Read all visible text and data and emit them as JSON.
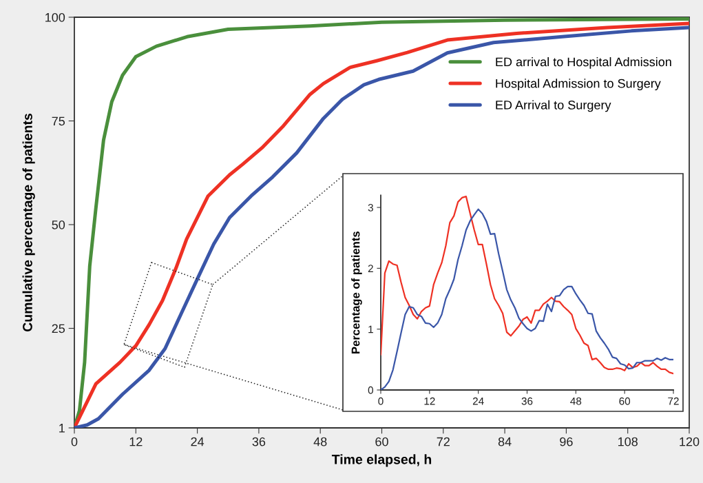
{
  "chart_data": [
    {
      "type": "line",
      "xlabel": "Time elapsed, h",
      "ylabel": "Cumulative percentage of patients",
      "xlim": [
        0,
        120
      ],
      "xticks": [
        0,
        12,
        24,
        36,
        48,
        60,
        72,
        84,
        96,
        108,
        120
      ],
      "ylim": [
        1,
        100
      ],
      "yticks": [
        1,
        25,
        50,
        75,
        100
      ],
      "legend": "top right",
      "grid": false,
      "series": [
        {
          "name": "ED arrival to Hospital Admission",
          "color": "#4a8f3c",
          "x": [
            0,
            1,
            2,
            3,
            4.2,
            5.7,
            7.3,
            9.4,
            12,
            16,
            22,
            30,
            46,
            60,
            84,
            120
          ],
          "values": [
            1,
            5.2,
            16.8,
            40,
            54,
            70.4,
            79.6,
            86,
            90.5,
            93,
            95.3,
            97.1,
            97.9,
            98.8,
            99.3,
            99.6
          ]
        },
        {
          "name": "Hospital Admission to Surgery",
          "color": "#ee3124",
          "x": [
            0,
            4.2,
            8.9,
            12,
            14.6,
            17.2,
            19.8,
            21.9,
            26.1,
            30.3,
            32.9,
            36.6,
            40.8,
            46,
            48.6,
            53.8,
            59,
            65,
            72.8,
            86.3,
            104,
            120
          ],
          "values": [
            1,
            11.6,
            16.8,
            20.8,
            25.9,
            31.7,
            39.4,
            46.5,
            56.9,
            62,
            64.6,
            68.5,
            73.8,
            81.4,
            84,
            87.9,
            89.5,
            91.5,
            94.5,
            96.1,
            97.5,
            98.5
          ]
        },
        {
          "name": "ED Arrival to Surgery",
          "color": "#3a56a8",
          "x": [
            0,
            2.5,
            4.7,
            9.4,
            14.6,
            17.7,
            20.8,
            24,
            27.2,
            30.3,
            34.5,
            38.7,
            43.4,
            48.6,
            52.3,
            56.5,
            59.4,
            66.1,
            72.8,
            81.8,
            95.2,
            108.7,
            120
          ],
          "values": [
            1,
            1.7,
            3.2,
            9.1,
            14.9,
            20.1,
            28.4,
            36.9,
            45.3,
            51.7,
            56.9,
            61.5,
            67.3,
            75.6,
            80.2,
            83.7,
            85,
            87,
            91.4,
            93.9,
            95.3,
            96.7,
            97.5
          ]
        }
      ]
    },
    {
      "type": "line",
      "ylabel": "Percentage of patients",
      "xlim": [
        0,
        72
      ],
      "xticks": [
        0,
        12,
        24,
        36,
        48,
        60,
        72
      ],
      "ylim": [
        0,
        3.2
      ],
      "yticks": [
        0,
        1,
        2,
        3
      ],
      "grid": false,
      "x": [
        0,
        1,
        2,
        3,
        4,
        5,
        6,
        7,
        8,
        9,
        10,
        11,
        12,
        13,
        14,
        15,
        16,
        17,
        18,
        19,
        20,
        21,
        22,
        23,
        24,
        25,
        26,
        27,
        28,
        29,
        30,
        31,
        32,
        33,
        34,
        35,
        36,
        37,
        38,
        39,
        40,
        41,
        42,
        43,
        44,
        45,
        46,
        47,
        48,
        49,
        50,
        51,
        52,
        53,
        54,
        55,
        56,
        57,
        58,
        59,
        60,
        61,
        62,
        63,
        64,
        65,
        66,
        67,
        68,
        69,
        70,
        71,
        72
      ],
      "series": [
        {
          "color": "#ee3124",
          "values": [
            0.58,
            1.92,
            2.12,
            2.07,
            2.05,
            1.77,
            1.52,
            1.39,
            1.24,
            1.17,
            1.29,
            1.35,
            1.38,
            1.73,
            1.92,
            2.09,
            2.37,
            2.75,
            2.86,
            3.09,
            3.16,
            3.18,
            2.9,
            2.63,
            2.39,
            2.39,
            2.07,
            1.73,
            1.5,
            1.39,
            1.26,
            0.95,
            0.89,
            0.97,
            1.05,
            1.16,
            1.2,
            1.1,
            1.31,
            1.31,
            1.41,
            1.46,
            1.52,
            1.46,
            1.45,
            1.37,
            1.31,
            1.24,
            1.01,
            0.9,
            0.77,
            0.73,
            0.5,
            0.52,
            0.45,
            0.37,
            0.34,
            0.34,
            0.36,
            0.35,
            0.32,
            0.43,
            0.37,
            0.39,
            0.45,
            0.4,
            0.4,
            0.45,
            0.39,
            0.34,
            0.34,
            0.29,
            0.27
          ]
        },
        {
          "color": "#3a56a8",
          "values": [
            0,
            0.05,
            0.14,
            0.33,
            0.63,
            0.94,
            1.24,
            1.37,
            1.35,
            1.24,
            1.21,
            1.1,
            1.09,
            1.03,
            1.1,
            1.24,
            1.5,
            1.65,
            1.82,
            2.14,
            2.37,
            2.63,
            2.78,
            2.88,
            2.97,
            2.9,
            2.77,
            2.56,
            2.57,
            2.24,
            1.95,
            1.65,
            1.48,
            1.35,
            1.18,
            1.09,
            1.01,
            0.97,
            1.01,
            1.14,
            1.13,
            1.41,
            1.29,
            1.54,
            1.55,
            1.65,
            1.7,
            1.7,
            1.58,
            1.48,
            1.39,
            1.26,
            1.25,
            0.97,
            0.86,
            0.77,
            0.67,
            0.54,
            0.52,
            0.43,
            0.41,
            0.35,
            0.36,
            0.45,
            0.45,
            0.48,
            0.48,
            0.48,
            0.52,
            0.49,
            0.53,
            0.5,
            0.5
          ]
        }
      ]
    }
  ]
}
